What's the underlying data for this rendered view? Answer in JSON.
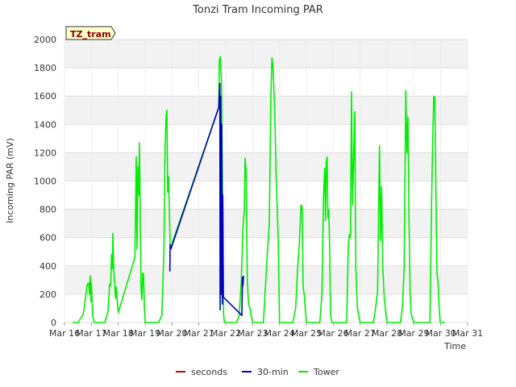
{
  "chart_data": {
    "type": "line",
    "title": "Tonzi Tram Incoming PAR",
    "xlabel": "Time",
    "ylabel": "Incoming PAR (mV)",
    "ylim": [
      0,
      2000
    ],
    "xlim": [
      16,
      31
    ],
    "yticks": [
      0,
      200,
      400,
      600,
      800,
      1000,
      1200,
      1400,
      1600,
      1800,
      2000
    ],
    "xticks": [
      16,
      17,
      18,
      19,
      20,
      21,
      22,
      23,
      24,
      25,
      26,
      27,
      28,
      29,
      30,
      31
    ],
    "xtick_labels": [
      "Mar 16",
      "Mar 17",
      "Mar 18",
      "Mar 19",
      "Mar 20",
      "Mar 21",
      "Mar 22",
      "Mar 23",
      "Mar 24",
      "Mar 25",
      "Mar 26",
      "Mar 27",
      "Mar 28",
      "Mar 29",
      "Mar 30",
      "Mar 31"
    ],
    "badge": "TZ_tram",
    "legend_position": "bottom",
    "series": [
      {
        "name": "seconds",
        "color": "#cc0000",
        "points": []
      },
      {
        "name": "30-min",
        "color": "#0000bb",
        "points": [
          [
            19.92,
            360
          ],
          [
            19.93,
            550
          ],
          [
            19.96,
            520
          ],
          [
            21.74,
            1520
          ],
          [
            21.78,
            1690
          ],
          [
            21.79,
            90
          ],
          [
            21.81,
            1600
          ],
          [
            21.83,
            200
          ],
          [
            21.85,
            1400
          ],
          [
            21.87,
            130
          ],
          [
            21.89,
            900
          ],
          [
            21.91,
            180
          ],
          [
            22.6,
            50
          ],
          [
            22.62,
            320
          ],
          [
            22.64,
            260
          ],
          [
            22.66,
            330
          ]
        ]
      },
      {
        "name": "Tower",
        "color": "#00ee00",
        "points": [
          [
            16.3,
            0
          ],
          [
            16.5,
            0
          ],
          [
            16.7,
            60
          ],
          [
            16.8,
            200
          ],
          [
            16.85,
            270
          ],
          [
            16.9,
            280
          ],
          [
            16.93,
            200
          ],
          [
            16.96,
            330
          ],
          [
            16.98,
            150
          ],
          [
            17.0,
            280
          ],
          [
            17.05,
            50
          ],
          [
            17.1,
            0
          ],
          [
            17.5,
            0
          ],
          [
            17.62,
            80
          ],
          [
            17.68,
            270
          ],
          [
            17.72,
            260
          ],
          [
            17.75,
            480
          ],
          [
            17.78,
            380
          ],
          [
            17.8,
            630
          ],
          [
            17.83,
            380
          ],
          [
            17.86,
            310
          ],
          [
            17.9,
            170
          ],
          [
            17.93,
            250
          ],
          [
            17.96,
            160
          ],
          [
            18.0,
            70
          ],
          [
            18.62,
            460
          ],
          [
            18.67,
            1170
          ],
          [
            18.7,
            520
          ],
          [
            18.73,
            1100
          ],
          [
            18.76,
            900
          ],
          [
            18.79,
            1270
          ],
          [
            18.82,
            700
          ],
          [
            18.85,
            230
          ],
          [
            18.88,
            160
          ],
          [
            18.91,
            350
          ],
          [
            18.94,
            340
          ],
          [
            18.97,
            120
          ],
          [
            19.0,
            0
          ],
          [
            19.5,
            0
          ],
          [
            19.62,
            50
          ],
          [
            19.7,
            500
          ],
          [
            19.74,
            1200
          ],
          [
            19.78,
            1460
          ],
          [
            19.81,
            1500
          ],
          [
            19.84,
            920
          ],
          [
            19.87,
            1030
          ],
          [
            19.9,
            820
          ],
          [
            19.93,
            550
          ],
          [
            19.97,
            540
          ],
          [
            21.74,
            1520
          ],
          [
            21.76,
            1850
          ],
          [
            21.8,
            1880
          ],
          [
            21.84,
            1700
          ],
          [
            21.88,
            1000
          ],
          [
            21.92,
            60
          ],
          [
            21.95,
            0
          ],
          [
            22.4,
            0
          ],
          [
            22.5,
            50
          ],
          [
            22.58,
            300
          ],
          [
            22.64,
            660
          ],
          [
            22.69,
            800
          ],
          [
            22.72,
            1160
          ],
          [
            22.76,
            1070
          ],
          [
            22.8,
            300
          ],
          [
            22.85,
            130
          ],
          [
            22.9,
            100
          ],
          [
            23.0,
            0
          ],
          [
            23.4,
            0
          ],
          [
            23.55,
            500
          ],
          [
            23.62,
            700
          ],
          [
            23.68,
            1600
          ],
          [
            23.72,
            1870
          ],
          [
            23.76,
            1800
          ],
          [
            23.82,
            1500
          ],
          [
            23.88,
            1000
          ],
          [
            23.95,
            600
          ],
          [
            24.0,
            0
          ],
          [
            24.5,
            0
          ],
          [
            24.6,
            100
          ],
          [
            24.68,
            400
          ],
          [
            24.74,
            560
          ],
          [
            24.8,
            830
          ],
          [
            24.84,
            820
          ],
          [
            24.88,
            250
          ],
          [
            24.92,
            200
          ],
          [
            24.95,
            120
          ],
          [
            25.0,
            0
          ],
          [
            25.5,
            0
          ],
          [
            25.58,
            200
          ],
          [
            25.64,
            900
          ],
          [
            25.68,
            1090
          ],
          [
            25.71,
            720
          ],
          [
            25.74,
            1140
          ],
          [
            25.77,
            1170
          ],
          [
            25.8,
            740
          ],
          [
            25.83,
            800
          ],
          [
            25.86,
            590
          ],
          [
            25.9,
            50
          ],
          [
            25.95,
            0
          ],
          [
            26.5,
            0
          ],
          [
            26.56,
            550
          ],
          [
            26.6,
            620
          ],
          [
            26.64,
            600
          ],
          [
            26.68,
            1630
          ],
          [
            26.72,
            830
          ],
          [
            26.76,
            1170
          ],
          [
            26.8,
            1490
          ],
          [
            26.84,
            400
          ],
          [
            26.9,
            100
          ],
          [
            27.0,
            0
          ],
          [
            27.5,
            0
          ],
          [
            27.6,
            140
          ],
          [
            27.65,
            220
          ],
          [
            27.72,
            1250
          ],
          [
            27.76,
            580
          ],
          [
            27.8,
            960
          ],
          [
            27.84,
            400
          ],
          [
            27.9,
            160
          ],
          [
            28.0,
            0
          ],
          [
            28.5,
            0
          ],
          [
            28.58,
            120
          ],
          [
            28.64,
            400
          ],
          [
            28.7,
            1640
          ],
          [
            28.74,
            1200
          ],
          [
            28.78,
            1450
          ],
          [
            28.82,
            750
          ],
          [
            28.86,
            200
          ],
          [
            28.9,
            60
          ],
          [
            29.0,
            0
          ],
          [
            29.6,
            0
          ],
          [
            29.66,
            850
          ],
          [
            29.7,
            1290
          ],
          [
            29.74,
            1600
          ],
          [
            29.78,
            1590
          ],
          [
            29.82,
            930
          ],
          [
            29.86,
            350
          ],
          [
            29.9,
            290
          ],
          [
            29.94,
            100
          ],
          [
            29.98,
            0
          ],
          [
            30.15,
            0
          ]
        ]
      }
    ]
  }
}
